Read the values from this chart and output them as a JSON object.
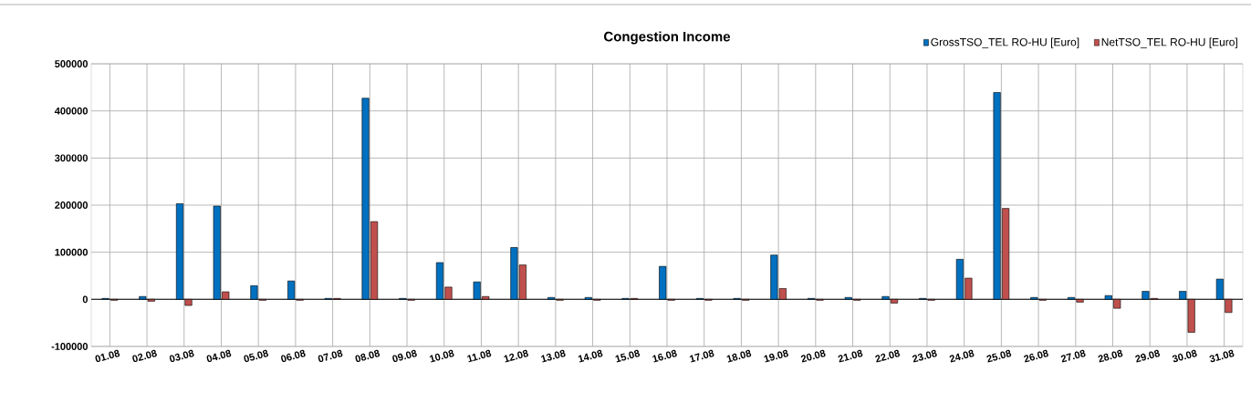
{
  "chart_data": {
    "type": "bar",
    "title": "Congestion Income",
    "categories": [
      "01.08",
      "02.08",
      "03.08",
      "04.08",
      "05.08",
      "06.08",
      "07.08",
      "08.08",
      "09.08",
      "10.08",
      "11.08",
      "12.08",
      "13.08",
      "14.08",
      "15.08",
      "16.08",
      "17.08",
      "18.08",
      "19.08",
      "20.08",
      "21.08",
      "22.08",
      "23.08",
      "24.08",
      "25.08",
      "26.08",
      "27.08",
      "28.08",
      "29.08",
      "30.08",
      "31.08"
    ],
    "series": [
      {
        "name": "GrossTSO_TEL RO-HU [Euro]",
        "color": "#0070c0",
        "values": [
          2000,
          6000,
          203000,
          198000,
          29000,
          39000,
          2000,
          427000,
          2000,
          78000,
          37000,
          110000,
          4000,
          4000,
          2000,
          70000,
          2000,
          2000,
          94000,
          2000,
          4000,
          6000,
          2000,
          85000,
          439000,
          4000,
          4000,
          8000,
          17000,
          17000,
          43000
        ]
      },
      {
        "name": "NetTSO_TEL RO-HU [Euro]",
        "color": "#c0504d",
        "values": [
          -2000,
          -4000,
          -13000,
          16000,
          -2000,
          -2000,
          2000,
          165000,
          -2000,
          26000,
          6000,
          73000,
          -2000,
          -2000,
          2000,
          -2000,
          -2000,
          -2000,
          23000,
          -2000,
          -2000,
          -8000,
          -2000,
          45000,
          193000,
          -2000,
          -6000,
          -19000,
          2000,
          -70000,
          -28000
        ]
      }
    ],
    "ylim": [
      -100000,
      500000
    ],
    "yticks": [
      -100000,
      0,
      100000,
      200000,
      300000,
      400000,
      500000
    ],
    "grid": true,
    "legend": "top right"
  }
}
